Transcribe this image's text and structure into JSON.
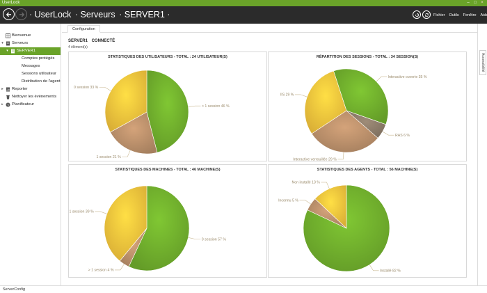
{
  "window": {
    "app_name": "UserLock",
    "buttons": [
      "–",
      "□",
      "×"
    ]
  },
  "header": {
    "breadcrumb": [
      "· UserLock",
      "· Serveurs",
      "· SERVER1 ·"
    ],
    "menu": [
      "Fichier",
      "Outils",
      "Fenêtre",
      "Aide"
    ]
  },
  "sidebar": {
    "items": [
      {
        "label": "Bienvenue",
        "icon": "grid-icon"
      },
      {
        "label": "Serveurs",
        "icon": "server-icon"
      },
      {
        "label": "SERVER1",
        "icon": "server-node-icon"
      },
      {
        "label": "Comptes protégés"
      },
      {
        "label": "Messages"
      },
      {
        "label": "Sessions utilisateur"
      },
      {
        "label": "Distribution de l'agent"
      },
      {
        "label": "Reporter",
        "icon": "report-icon"
      },
      {
        "label": "Nettoyer les évènements",
        "icon": "cleanup-icon"
      },
      {
        "label": "Planificateur",
        "icon": "clock-icon"
      }
    ]
  },
  "tabs": {
    "active": "Configuration",
    "side_tab": "Accessibilité"
  },
  "main": {
    "server_name": "SERVER1",
    "server_status": "CONNECTÉ",
    "element_count": "4 élément(s)"
  },
  "status_bar": {
    "text": "ServerConfig"
  },
  "colors": {
    "accent": "#6aa329",
    "header_bg": "#2b2b2b",
    "slice_green": "#6fad2c",
    "slice_yellow": "#f2c23c",
    "slice_tan": "#b88e6a",
    "slice_taupe": "#9c7f6a",
    "label_text": "#9a8a6a"
  },
  "chart_data": [
    {
      "type": "pie",
      "title": "STATISTIQUES DES UTILISATEURS  -  TOTAL : 24 UTILISATEUR(S)",
      "slices": [
        {
          "label": "> 1 session",
          "value": 46,
          "color": "#6fad2c"
        },
        {
          "label": "1 session",
          "value": 21,
          "color": "#b88e6a"
        },
        {
          "label": "0 session",
          "value": 33,
          "color": "#f2c23c"
        }
      ]
    },
    {
      "type": "pie",
      "title": "RÉPARTITION DES SESSIONS  -  TOTAL : 34 SESSION(S)",
      "slices": [
        {
          "label": "Interactive ouverte",
          "value": 35,
          "color": "#6fad2c"
        },
        {
          "label": "RAS",
          "value": 6,
          "color": "#8a7a68"
        },
        {
          "label": "Interactive verrouillée",
          "value": 29,
          "color": "#b88e6a"
        },
        {
          "label": "IIS",
          "value": 29,
          "color": "#f2c23c"
        }
      ]
    },
    {
      "type": "pie",
      "title": "STATISTIQUES DES MACHINES  -  TOTAL : 46 MACHINE(S)",
      "slices": [
        {
          "label": "0 session",
          "value": 57,
          "color": "#6fad2c"
        },
        {
          "label": "> 1 session",
          "value": 4,
          "color": "#b88e6a"
        },
        {
          "label": "1 session",
          "value": 39,
          "color": "#f2c23c"
        }
      ]
    },
    {
      "type": "pie",
      "title": "STATISTIQUES DES AGENTS  -  TOTAL : 56 MACHINE(S)",
      "slices": [
        {
          "label": "Installé",
          "value": 82,
          "color": "#6fad2c"
        },
        {
          "label": "Inconnu",
          "value": 5,
          "color": "#b88e6a"
        },
        {
          "label": "Non installé",
          "value": 13,
          "color": "#f2c23c"
        }
      ]
    }
  ]
}
